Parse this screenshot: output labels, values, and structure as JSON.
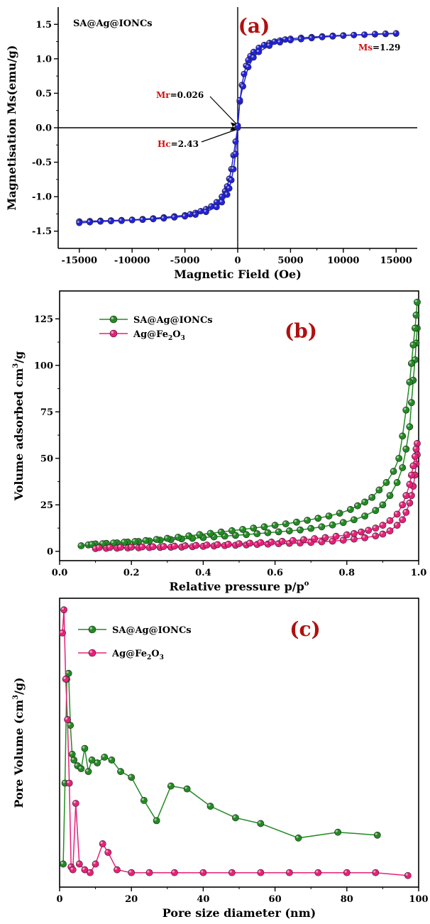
{
  "chart_data": [
    {
      "type": "line",
      "panel_label": "(a)",
      "xlabel": "Magnetic Field (Oe)",
      "ylabel": "Magnetisation Ms(emu/g)",
      "xlim": [
        -17000,
        17000
      ],
      "ylim": [
        -1.75,
        1.75
      ],
      "xticks": [
        -15000,
        -10000,
        -5000,
        0,
        5000,
        10000,
        15000
      ],
      "yticks": [
        -1.5,
        -1.0,
        -0.5,
        0.0,
        0.5,
        1.0,
        1.5
      ],
      "legend_text": "SA@Ag@IONCs",
      "color": "#2222dd",
      "annotations": {
        "ms_label": "Ms",
        "ms_value": "=1.29",
        "mr_label": "Mr",
        "mr_value": "=0.026",
        "hc_label": "Hc",
        "hc_value": "=2.43"
      },
      "series": [
        {
          "x": [
            -15000,
            -14000,
            -13000,
            -12000,
            -11000,
            -10000,
            -9000,
            -8000,
            -7000,
            -6000,
            -5000,
            -4500,
            -4000,
            -3500,
            -3000,
            -2500,
            -2000,
            -1500,
            -1200,
            -1000,
            -800,
            -600,
            -400,
            -200,
            0,
            200,
            400,
            600,
            800,
            1000,
            1200,
            1500,
            2000,
            2500,
            3000,
            3500,
            4000,
            4500,
            5000,
            6000,
            7000,
            8000,
            9000,
            10000,
            11000,
            12000,
            13000,
            14000,
            15000
          ],
          "y": [
            -1.36,
            -1.355,
            -1.35,
            -1.345,
            -1.34,
            -1.335,
            -1.325,
            -1.315,
            -1.3,
            -1.285,
            -1.27,
            -1.255,
            -1.235,
            -1.21,
            -1.18,
            -1.14,
            -1.08,
            -1.0,
            -0.92,
            -0.85,
            -0.74,
            -0.6,
            -0.4,
            -0.2,
            0.0,
            0.38,
            0.62,
            0.78,
            0.9,
            0.98,
            1.04,
            1.1,
            1.16,
            1.2,
            1.23,
            1.25,
            1.265,
            1.28,
            1.29,
            1.305,
            1.315,
            1.325,
            1.335,
            1.34,
            1.345,
            1.35,
            1.355,
            1.36,
            1.365
          ]
        },
        {
          "x": [
            15000,
            14000,
            13000,
            12000,
            11000,
            10000,
            9000,
            8000,
            7000,
            6000,
            5000,
            4000,
            3000,
            2000,
            1500,
            1000,
            500,
            200,
            0,
            -200,
            -400,
            -600,
            -800,
            -1000,
            -1500,
            -2000,
            -3000,
            -4000,
            -5000,
            -6000,
            -7000,
            -8000,
            -9000,
            -10000,
            -11000,
            -12000,
            -13000,
            -14000,
            -15000
          ],
          "y": [
            1.37,
            1.365,
            1.36,
            1.35,
            1.345,
            1.335,
            1.325,
            1.315,
            1.3,
            1.285,
            1.27,
            1.24,
            1.19,
            1.1,
            1.02,
            0.88,
            0.6,
            0.4,
            0.03,
            -0.38,
            -0.6,
            -0.76,
            -0.88,
            -0.97,
            -1.08,
            -1.15,
            -1.22,
            -1.26,
            -1.285,
            -1.3,
            -1.315,
            -1.325,
            -1.335,
            -1.34,
            -1.35,
            -1.355,
            -1.36,
            -1.37,
            -1.38
          ]
        }
      ]
    },
    {
      "type": "line",
      "panel_label": "(b)",
      "xlabel": "Relative pressure p/p",
      "xlabel_sup": "o",
      "ylabel": "Volume adsorbed cm",
      "ylabel_sup": "3",
      "ylabel_tail": "/g",
      "xlim": [
        0.0,
        1.0
      ],
      "ylim": [
        -5,
        140
      ],
      "xticks": [
        0.0,
        0.2,
        0.4,
        0.6,
        0.8,
        1.0
      ],
      "yticks": [
        0,
        25,
        50,
        75,
        100,
        125
      ],
      "legend_placement": "top-left",
      "series": [
        {
          "name": "SA@Ag@IONCs",
          "color": "#228b22",
          "x": [
            0.06,
            0.08,
            0.1,
            0.13,
            0.16,
            0.19,
            0.22,
            0.25,
            0.28,
            0.31,
            0.34,
            0.37,
            0.4,
            0.43,
            0.46,
            0.49,
            0.52,
            0.55,
            0.58,
            0.61,
            0.64,
            0.67,
            0.7,
            0.73,
            0.76,
            0.79,
            0.82,
            0.85,
            0.88,
            0.9,
            0.92,
            0.94,
            0.955,
            0.965,
            0.975,
            0.98,
            0.985,
            0.99,
            0.993,
            0.996
          ],
          "y": [
            3,
            3.5,
            4,
            4.3,
            4.6,
            5,
            5.3,
            5.6,
            6,
            6.3,
            6.7,
            7,
            7.4,
            7.8,
            8.2,
            8.6,
            9,
            9.5,
            10,
            10.5,
            11,
            11.5,
            12.3,
            13.2,
            14.2,
            15.5,
            17,
            19,
            22,
            25,
            30,
            37,
            45,
            55,
            67,
            80,
            92,
            103,
            112,
            120
          ]
        },
        {
          "name": "SA@Ag@IONCs",
          "color": "#228b22",
          "x": [
            0.996,
            0.993,
            0.99,
            0.985,
            0.98,
            0.975,
            0.965,
            0.955,
            0.945,
            0.93,
            0.91,
            0.89,
            0.87,
            0.85,
            0.83,
            0.81,
            0.78,
            0.75,
            0.72,
            0.69,
            0.66,
            0.63,
            0.6,
            0.57,
            0.54,
            0.51,
            0.48,
            0.45,
            0.42,
            0.39,
            0.36,
            0.33,
            0.3,
            0.27,
            0.24,
            0.21,
            0.18,
            0.15,
            0.12,
            0.09
          ],
          "y": [
            134,
            127,
            120,
            111,
            101,
            91,
            76,
            62,
            50,
            43,
            37,
            33,
            29,
            26.5,
            24.5,
            22.5,
            20.5,
            19,
            17.8,
            16.7,
            15.7,
            14.8,
            14,
            13.2,
            12.5,
            11.8,
            11.1,
            10.4,
            9.7,
            9,
            8.3,
            7.6,
            7,
            6.4,
            5.8,
            5.3,
            4.9,
            4.5,
            4.1,
            3.7
          ]
        },
        {
          "name": "Ag@Fe2O3",
          "color": "#e8207a",
          "x": [
            0.1,
            0.13,
            0.16,
            0.19,
            0.22,
            0.25,
            0.28,
            0.31,
            0.34,
            0.37,
            0.4,
            0.43,
            0.46,
            0.49,
            0.52,
            0.55,
            0.58,
            0.61,
            0.64,
            0.67,
            0.7,
            0.73,
            0.76,
            0.79,
            0.82,
            0.85,
            0.88,
            0.9,
            0.92,
            0.94,
            0.955,
            0.965,
            0.975,
            0.98,
            0.985,
            0.99,
            0.993,
            0.996
          ],
          "y": [
            1.5,
            1.6,
            1.7,
            1.8,
            1.9,
            2,
            2.1,
            2.2,
            2.3,
            2.5,
            2.7,
            2.9,
            3.1,
            3.3,
            3.5,
            3.7,
            3.9,
            4.1,
            4.3,
            4.5,
            4.8,
            5.1,
            5.5,
            6,
            6.6,
            7.3,
            8.3,
            9.3,
            11,
            14,
            17,
            21,
            26,
            30,
            35,
            41,
            47,
            52
          ]
        },
        {
          "name": "Ag@Fe2O3",
          "color": "#e8207a",
          "x": [
            0.996,
            0.993,
            0.99,
            0.985,
            0.98,
            0.975,
            0.965,
            0.955,
            0.94,
            0.92,
            0.9,
            0.88,
            0.86,
            0.84,
            0.82,
            0.8,
            0.77,
            0.74,
            0.71,
            0.68,
            0.65,
            0.62,
            0.59,
            0.56,
            0.53,
            0.5,
            0.47,
            0.44,
            0.41,
            0.38,
            0.35,
            0.32,
            0.29,
            0.26,
            0.23,
            0.2,
            0.17,
            0.14,
            0.11
          ],
          "y": [
            58,
            55,
            51,
            46,
            41,
            36,
            30,
            25,
            20,
            16.5,
            14,
            12.5,
            11.3,
            10.4,
            9.6,
            8.9,
            8.1,
            7.4,
            6.8,
            6.3,
            5.8,
            5.4,
            5,
            4.7,
            4.4,
            4.1,
            3.8,
            3.6,
            3.4,
            3.2,
            3,
            2.8,
            2.6,
            2.5,
            2.4,
            2.3,
            2.2,
            2.1,
            2
          ]
        }
      ]
    },
    {
      "type": "line",
      "panel_label": "(c)",
      "xlabel": "Pore size diameter (nm)",
      "ylabel": "Pore Volume (cm",
      "ylabel_sup": "3",
      "ylabel_tail": "/g)",
      "xlim": [
        0,
        100
      ],
      "ylim": [
        0,
        1
      ],
      "xticks": [
        0,
        20,
        40,
        60,
        80,
        100
      ],
      "yticks": [],
      "legend_placement": "top-left",
      "series": [
        {
          "name": "SA@Ag@IONCs",
          "color": "#228b22",
          "x": [
            1.0,
            1.5,
            2.0,
            2.5,
            3.0,
            3.5,
            4.0,
            5.0,
            6.0,
            7.0,
            8.0,
            9.0,
            10.5,
            12.5,
            14.5,
            17.0,
            20.0,
            23.5,
            27.0,
            31.0,
            35.5,
            42.0,
            49.0,
            56.0,
            66.5,
            77.5,
            88.5
          ],
          "y": [
            0.08,
            0.36,
            0.72,
            0.74,
            0.56,
            0.46,
            0.44,
            0.42,
            0.41,
            0.48,
            0.4,
            0.44,
            0.43,
            0.45,
            0.44,
            0.4,
            0.38,
            0.3,
            0.23,
            0.35,
            0.34,
            0.28,
            0.24,
            0.22,
            0.17,
            0.19,
            0.18
          ]
        },
        {
          "name": "Ag@Fe2O3",
          "color": "#e8207a",
          "x": [
            0.8,
            1.2,
            1.7,
            2.2,
            2.7,
            3.2,
            3.7,
            4.5,
            5.5,
            7.0,
            8.5,
            10.0,
            12.0,
            13.5,
            16.0,
            20.0,
            25.0,
            32.0,
            40.0,
            48.0,
            56.0,
            64.0,
            72.0,
            80.0,
            88.0,
            97.0
          ],
          "y": [
            0.88,
            0.96,
            0.72,
            0.58,
            0.36,
            0.07,
            0.06,
            0.29,
            0.08,
            0.06,
            0.05,
            0.08,
            0.15,
            0.12,
            0.06,
            0.05,
            0.05,
            0.05,
            0.05,
            0.05,
            0.05,
            0.05,
            0.05,
            0.05,
            0.05,
            0.04
          ]
        }
      ]
    }
  ]
}
